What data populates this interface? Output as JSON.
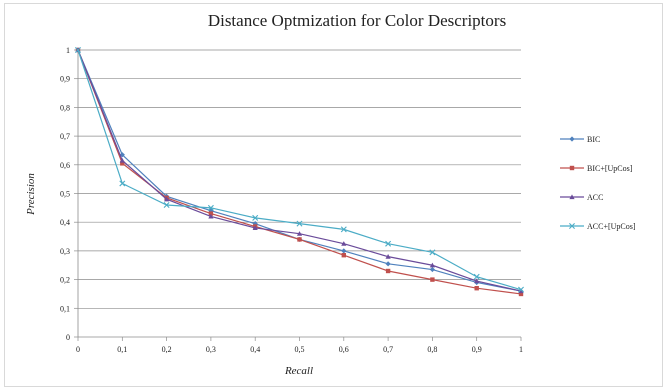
{
  "chart_data": {
    "type": "line",
    "title": "Distance Optmization for Color Descriptors",
    "xlabel": "Recall",
    "ylabel": "Precision",
    "x": [
      "0",
      "0,1",
      "0,2",
      "0,3",
      "0,4",
      "0,5",
      "0,6",
      "0,7",
      "0,8",
      "0,9",
      "1"
    ],
    "x_values": [
      0,
      0.1,
      0.2,
      0.3,
      0.4,
      0.5,
      0.6,
      0.7,
      0.8,
      0.9,
      1.0
    ],
    "y_ticks": [
      "0",
      "0,1",
      "0,2",
      "0,3",
      "0,4",
      "0,5",
      "0,6",
      "0,7",
      "0,8",
      "0,9",
      "1"
    ],
    "ylim": [
      0,
      1
    ],
    "xlim": [
      0,
      1
    ],
    "grid": true,
    "legend": "right",
    "series": [
      {
        "name": "BIC",
        "color": "#4f81bd",
        "marker": "diamond",
        "values": [
          1.0,
          0.635,
          0.49,
          0.44,
          0.395,
          0.34,
          0.3,
          0.255,
          0.235,
          0.19,
          0.16
        ]
      },
      {
        "name": "BIC+[UpCos]",
        "color": "#c0504d",
        "marker": "square",
        "values": [
          1.0,
          0.605,
          0.485,
          0.43,
          0.385,
          0.34,
          0.285,
          0.23,
          0.2,
          0.17,
          0.15
        ]
      },
      {
        "name": "ACC",
        "color": "#6a4b9a",
        "marker": "triangle",
        "values": [
          1.0,
          0.615,
          0.48,
          0.42,
          0.38,
          0.36,
          0.325,
          0.28,
          0.25,
          0.195,
          0.16
        ]
      },
      {
        "name": "ACC+[UpCos]",
        "color": "#4bacc6",
        "marker": "x",
        "values": [
          1.0,
          0.535,
          0.46,
          0.45,
          0.415,
          0.395,
          0.375,
          0.325,
          0.295,
          0.21,
          0.165
        ]
      }
    ]
  }
}
